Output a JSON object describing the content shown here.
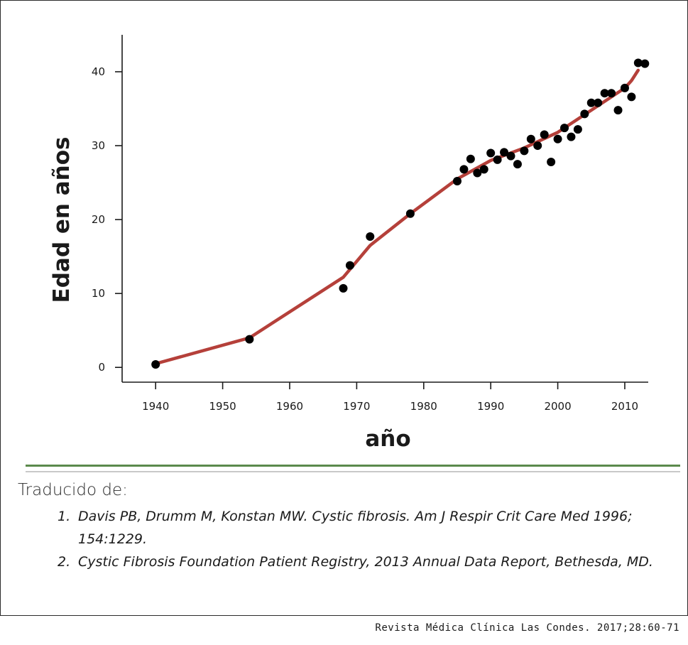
{
  "chart_data": {
    "type": "scatter",
    "xlabel": "año",
    "ylabel": "Edad en años",
    "xlim": [
      1935,
      2013.5
    ],
    "ylim": [
      -2,
      45
    ],
    "x_ticks": [
      1940,
      1950,
      1960,
      1970,
      1980,
      1990,
      2000,
      2010
    ],
    "y_ticks": [
      0,
      10,
      20,
      30,
      40
    ],
    "grid": false,
    "point_color": "#000000",
    "line_color": "#b5403a",
    "points": [
      {
        "x": 1940,
        "y": 0.4
      },
      {
        "x": 1954,
        "y": 3.8
      },
      {
        "x": 1968,
        "y": 10.7
      },
      {
        "x": 1969,
        "y": 13.8
      },
      {
        "x": 1972,
        "y": 17.7
      },
      {
        "x": 1978,
        "y": 20.8
      },
      {
        "x": 1985,
        "y": 25.2
      },
      {
        "x": 1986,
        "y": 26.8
      },
      {
        "x": 1987,
        "y": 28.2
      },
      {
        "x": 1988,
        "y": 26.3
      },
      {
        "x": 1989,
        "y": 26.8
      },
      {
        "x": 1990,
        "y": 29.0
      },
      {
        "x": 1991,
        "y": 28.1
      },
      {
        "x": 1992,
        "y": 29.1
      },
      {
        "x": 1993,
        "y": 28.6
      },
      {
        "x": 1994,
        "y": 27.5
      },
      {
        "x": 1995,
        "y": 29.3
      },
      {
        "x": 1996,
        "y": 30.9
      },
      {
        "x": 1997,
        "y": 30.0
      },
      {
        "x": 1998,
        "y": 31.5
      },
      {
        "x": 1999,
        "y": 27.8
      },
      {
        "x": 2000,
        "y": 30.9
      },
      {
        "x": 2001,
        "y": 32.4
      },
      {
        "x": 2002,
        "y": 31.2
      },
      {
        "x": 2003,
        "y": 32.2
      },
      {
        "x": 2004,
        "y": 34.3
      },
      {
        "x": 2005,
        "y": 35.8
      },
      {
        "x": 2006,
        "y": 35.8
      },
      {
        "x": 2007,
        "y": 37.1
      },
      {
        "x": 2008,
        "y": 37.1
      },
      {
        "x": 2009,
        "y": 34.8
      },
      {
        "x": 2010,
        "y": 37.8
      },
      {
        "x": 2011,
        "y": 36.6
      },
      {
        "x": 2012,
        "y": 41.2
      },
      {
        "x": 2013,
        "y": 41.1
      }
    ],
    "trend_line": [
      {
        "x": 1940,
        "y": 0.5
      },
      {
        "x": 1954,
        "y": 4.0
      },
      {
        "x": 1968,
        "y": 12.2
      },
      {
        "x": 1972,
        "y": 16.5
      },
      {
        "x": 1978,
        "y": 20.8
      },
      {
        "x": 1985,
        "y": 25.5
      },
      {
        "x": 1990,
        "y": 28.0
      },
      {
        "x": 1995,
        "y": 29.7
      },
      {
        "x": 2000,
        "y": 31.8
      },
      {
        "x": 2005,
        "y": 34.8
      },
      {
        "x": 2010,
        "y": 37.8
      },
      {
        "x": 2011,
        "y": 38.8
      },
      {
        "x": 2012,
        "y": 40.2
      }
    ]
  },
  "caption": {
    "translated_from": "Traducido de:",
    "references": [
      {
        "number": "1.",
        "text": "Davis PB, Drumm M, Konstan MW. Cystic fibrosis. Am J Respir Crit Care Med 1996; 154:1229."
      },
      {
        "number": "2.",
        "text": "Cystic Fibrosis Foundation Patient Registry, 2013 Annual Data Report, Bethesda, MD."
      }
    ]
  },
  "source_credit": "Revista Médica Clínica Las Condes. 2017;28:60-71"
}
